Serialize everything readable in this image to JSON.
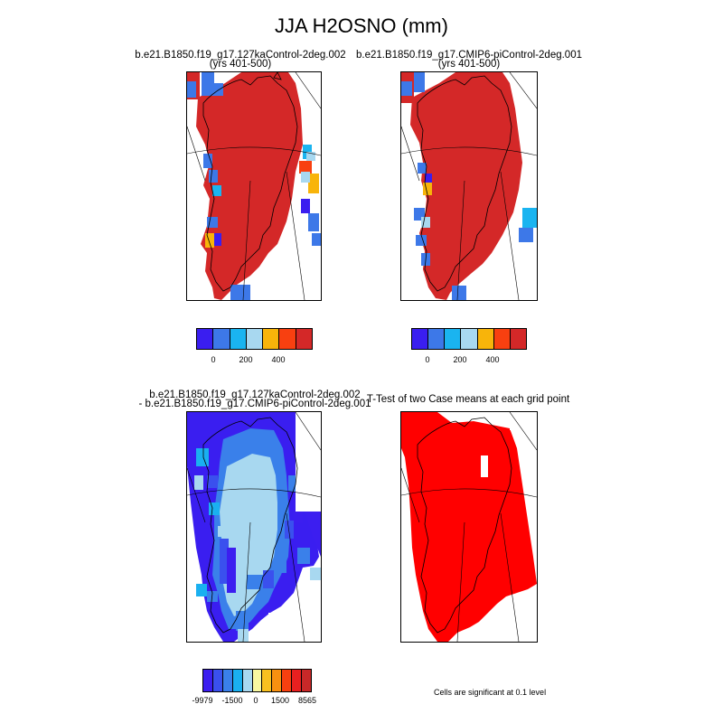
{
  "main_title": "JJA H2OSNO (mm)",
  "panels": [
    {
      "title_line1": "b.e21.B1850.f19_g17.127kaControl-2deg.002",
      "title_line2": "(yrs 401-500)"
    },
    {
      "title_line1": "b.e21.B1850.f19_g17.CMIP6-piControl-2deg.001",
      "title_line2": "(yrs 401-500)"
    },
    {
      "title_line1": "b.e21.B1850.f19_g17.127kaControl-2deg.002",
      "title_line2": "- b.e21.B1850.f19_g17.CMIP6-piControl-2deg.001"
    },
    {
      "title_line1": "T-Test of two Case means at each grid point",
      "title_line2": ""
    }
  ],
  "colorbars": {
    "abs": {
      "colors": [
        "#3a1ef0",
        "#3d78e8",
        "#1ab4f0",
        "#a8d8f0",
        "#f8b40a",
        "#f84010",
        "#d42828"
      ],
      "labels": [
        "0",
        "200",
        "400"
      ]
    },
    "diff": {
      "colors": [
        "#3c1ef0",
        "#3a50ee",
        "#3a80ea",
        "#1ab0f0",
        "#a8d8f0",
        "#f8f8a0",
        "#f8c020",
        "#f89010",
        "#f84010",
        "#e82020",
        "#c82828"
      ],
      "labels": [
        "-9979",
        "-1500",
        "0",
        "1500",
        "8565"
      ]
    }
  },
  "significance_note": "Cells are significant at 0.1 level"
}
